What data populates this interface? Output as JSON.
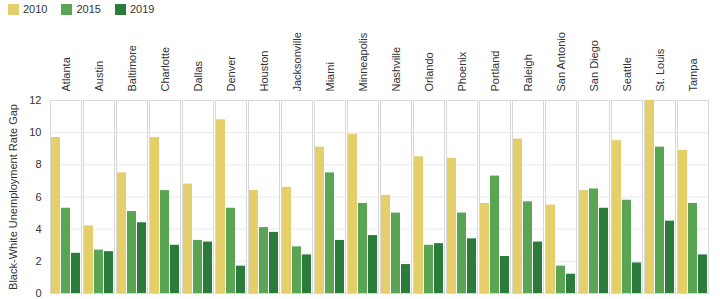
{
  "chart_data": {
    "type": "bar",
    "categories": [
      "Atlanta",
      "Austin",
      "Baltimore",
      "Charlotte",
      "Dallas",
      "Denver",
      "Houston",
      "Jacksonville",
      "Miami",
      "Minneapolis",
      "Nashville",
      "Orlando",
      "Phoenix",
      "Portland",
      "Raleigh",
      "San Antonio",
      "San Diego",
      "Seattle",
      "St. Louis",
      "Tampa"
    ],
    "series": [
      {
        "name": "2010",
        "color": "#e5cf6b",
        "values": [
          9.7,
          4.2,
          7.5,
          9.7,
          6.8,
          10.8,
          6.4,
          6.6,
          9.1,
          9.9,
          6.1,
          8.5,
          8.4,
          5.6,
          9.6,
          5.5,
          6.4,
          9.5,
          12.0,
          8.9
        ]
      },
      {
        "name": "2015",
        "color": "#5aa553",
        "values": [
          5.3,
          2.7,
          5.1,
          6.4,
          3.3,
          5.3,
          4.1,
          2.9,
          7.5,
          5.6,
          5.0,
          3.0,
          5.0,
          7.3,
          5.7,
          1.7,
          6.5,
          5.8,
          9.1,
          5.6
        ]
      },
      {
        "name": "2019",
        "color": "#2b7b3b",
        "values": [
          2.5,
          2.6,
          4.4,
          3.0,
          3.2,
          1.7,
          3.8,
          2.4,
          3.3,
          3.6,
          1.8,
          3.1,
          3.4,
          2.3,
          3.2,
          1.2,
          5.3,
          1.9,
          4.5,
          2.4
        ]
      }
    ],
    "y_label": "Black-White Unemployment Rate Gap",
    "ylim": [
      0,
      12
    ],
    "yticks": [
      0,
      2,
      4,
      6,
      8,
      10,
      12
    ],
    "grid": true,
    "legend": "top-left"
  }
}
